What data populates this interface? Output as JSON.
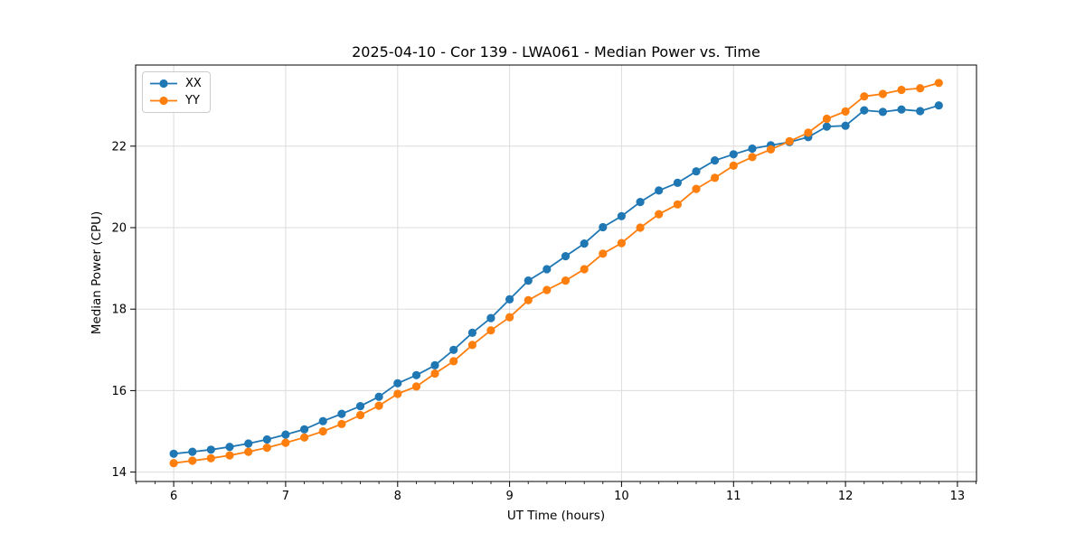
{
  "figure": {
    "background": "#ffffff"
  },
  "chart_data": {
    "type": "line",
    "title": "2025-04-10 - Cor 139 - LWA061 - Median Power vs. Time",
    "xlabel": "UT Time (hours)",
    "ylabel": "Median Power (CPU)",
    "xlim": [
      5.66,
      13.17
    ],
    "ylim": [
      13.77,
      23.99
    ],
    "x_ticks": [
      6,
      7,
      8,
      9,
      10,
      11,
      12,
      13
    ],
    "y_ticks": [
      14,
      16,
      18,
      20,
      22
    ],
    "minor_x_tick_interval": 0.1667,
    "grid": true,
    "legend_position": "upper left",
    "marker": "circle",
    "x": [
      6.0,
      6.167,
      6.333,
      6.5,
      6.667,
      6.833,
      7.0,
      7.167,
      7.333,
      7.5,
      7.667,
      7.833,
      8.0,
      8.167,
      8.333,
      8.5,
      8.667,
      8.833,
      9.0,
      9.167,
      9.333,
      9.5,
      9.667,
      9.833,
      10.0,
      10.167,
      10.333,
      10.5,
      10.667,
      10.833,
      11.0,
      11.167,
      11.333,
      11.5,
      11.667,
      11.833,
      12.0,
      12.167,
      12.333,
      12.5,
      12.667,
      12.833
    ],
    "series": [
      {
        "name": "XX",
        "color": "#1f77b4",
        "values": [
          14.45,
          14.5,
          14.55,
          14.62,
          14.7,
          14.8,
          14.92,
          15.05,
          15.25,
          15.43,
          15.62,
          15.85,
          16.18,
          16.38,
          16.62,
          17.0,
          17.42,
          17.78,
          18.24,
          18.7,
          18.98,
          19.3,
          19.61,
          20.01,
          20.28,
          20.63,
          20.91,
          21.1,
          21.38,
          21.65,
          21.8,
          21.94,
          22.02,
          22.1,
          22.22,
          22.48,
          22.5,
          22.88,
          22.84,
          22.9,
          22.86,
          23.0
        ]
      },
      {
        "name": "YY",
        "color": "#ff7f0e",
        "values": [
          14.22,
          14.28,
          14.34,
          14.41,
          14.5,
          14.6,
          14.72,
          14.85,
          15.0,
          15.18,
          15.4,
          15.63,
          15.92,
          16.1,
          16.42,
          16.72,
          17.12,
          17.48,
          17.8,
          18.22,
          18.47,
          18.7,
          18.98,
          19.36,
          19.62,
          20.0,
          20.33,
          20.57,
          20.95,
          21.22,
          21.52,
          21.73,
          21.92,
          22.12,
          22.33,
          22.67,
          22.85,
          23.22,
          23.28,
          23.38,
          23.42,
          23.55
        ]
      }
    ]
  },
  "colors": {
    "grid": "#dcdcdc",
    "spine": "#000000",
    "tick": "#000000"
  }
}
